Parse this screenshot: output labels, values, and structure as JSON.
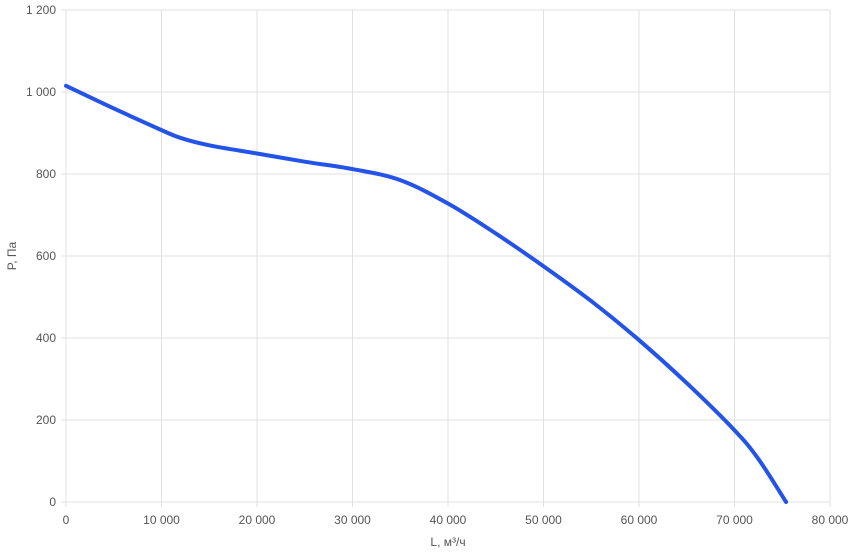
{
  "chart_data": {
    "type": "line",
    "title": "",
    "xlabel": "L, м³/ч",
    "ylabel": "P, Па",
    "xlim": [
      0,
      80000
    ],
    "ylim": [
      0,
      1200
    ],
    "grid": true,
    "x_ticks": [
      0,
      10000,
      20000,
      30000,
      40000,
      50000,
      60000,
      70000,
      80000
    ],
    "x_tick_labels": [
      "0",
      "10 000",
      "20 000",
      "30 000",
      "40 000",
      "50 000",
      "60 000",
      "70 000",
      "80 000"
    ],
    "y_ticks": [
      0,
      200,
      400,
      600,
      800,
      1000,
      1200
    ],
    "y_tick_labels": [
      "0",
      "200",
      "400",
      "600",
      "800",
      "1 000",
      "1 200"
    ],
    "line_color": "#2453e8",
    "grid_color": "#e0e0e0",
    "series": [
      {
        "x": [
          0,
          5000,
          10000,
          12000,
          15000,
          20000,
          25000,
          30000,
          35000,
          40000,
          45000,
          50000,
          55000,
          60000,
          65000,
          70000,
          72500,
          75400
        ],
        "y": [
          1015,
          960,
          907,
          888,
          870,
          850,
          830,
          812,
          785,
          728,
          655,
          575,
          490,
          395,
          290,
          175,
          105,
          0
        ]
      }
    ]
  }
}
